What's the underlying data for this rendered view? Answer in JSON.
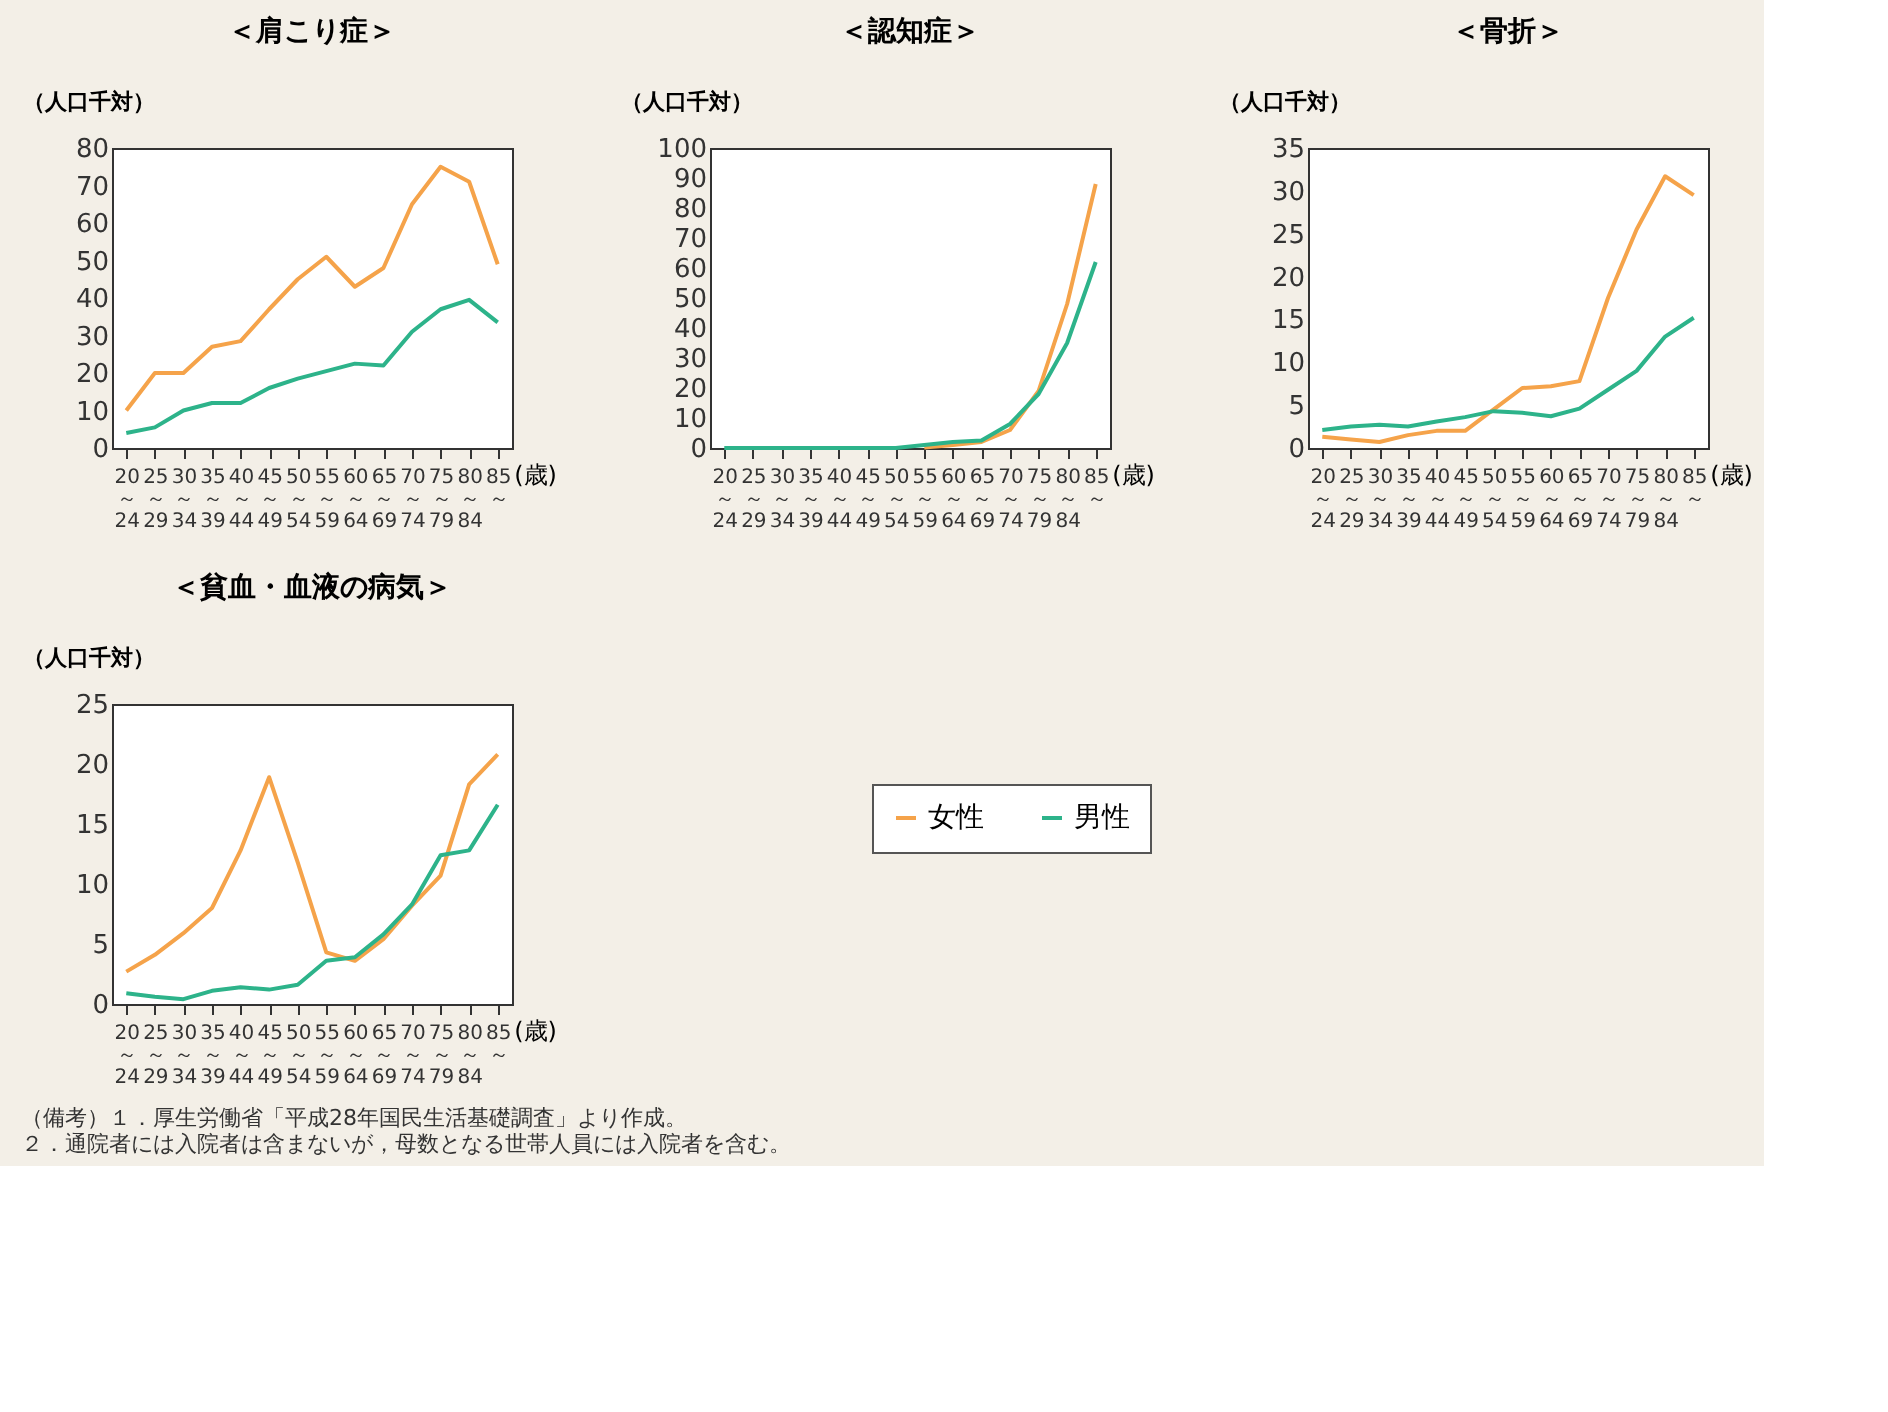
{
  "chart_data": [
    {
      "type": "line",
      "title": "＜肩こり症＞",
      "ylabel": "（人口千対）",
      "xlabel": "(歳)",
      "categories": [
        "20～24",
        "25～29",
        "30～34",
        "35～39",
        "40～44",
        "45～49",
        "50～54",
        "55～59",
        "60～64",
        "65～69",
        "70～74",
        "75～79",
        "80～84",
        "85～"
      ],
      "series": [
        {
          "color": "#f5a34a",
          "values": [
            10,
            20,
            20,
            27,
            28.5,
            37,
            45,
            51,
            43,
            48,
            65,
            75,
            71,
            49
          ]
        },
        {
          "color": "#2db38a",
          "values": [
            4,
            5.5,
            10,
            12,
            12,
            16,
            18.5,
            20.5,
            22.5,
            22,
            31,
            37,
            39.5,
            33.5
          ]
        }
      ],
      "ylim": [
        0,
        80
      ],
      "yticks": [
        0,
        10,
        20,
        30,
        40,
        50,
        60,
        70,
        80
      ],
      "grid": false,
      "marker": "none",
      "line_style": "solid"
    },
    {
      "type": "line",
      "title": "＜認知症＞",
      "ylabel": "（人口千対）",
      "xlabel": "(歳)",
      "categories": [
        "20～24",
        "25～29",
        "30～34",
        "35～39",
        "40～44",
        "45～49",
        "50～54",
        "55～59",
        "60～64",
        "65～69",
        "70～74",
        "75～79",
        "80～84",
        "85～"
      ],
      "series": [
        {
          "color": "#f5a34a",
          "values": [
            null,
            null,
            null,
            null,
            null,
            null,
            null,
            0.2,
            1,
            2,
            6,
            19,
            48,
            88
          ]
        },
        {
          "color": "#2db38a",
          "values": [
            0,
            0,
            0,
            0,
            0,
            0,
            0,
            1,
            2,
            2.5,
            8,
            18,
            35,
            62
          ]
        }
      ],
      "ylim": [
        0,
        100
      ],
      "yticks": [
        0,
        10,
        20,
        30,
        40,
        50,
        60,
        70,
        80,
        90,
        100
      ],
      "grid": false,
      "marker": "none",
      "line_style": "solid"
    },
    {
      "type": "line",
      "title": "＜骨折＞",
      "ylabel": "（人口千対）",
      "xlabel": "(歳)",
      "categories": [
        "20～24",
        "25～29",
        "30～34",
        "35～39",
        "40～44",
        "45～49",
        "50～54",
        "55～59",
        "60～64",
        "65～69",
        "70～74",
        "75～79",
        "80～84",
        "85～"
      ],
      "series": [
        {
          "color": "#f5a34a",
          "values": [
            1.3,
            1,
            0.7,
            1.5,
            2,
            2,
            4.5,
            7,
            7.2,
            7.8,
            17.5,
            25.5,
            31.7,
            29.5
          ]
        },
        {
          "color": "#2db38a",
          "values": [
            2.1,
            2.5,
            2.7,
            2.5,
            3.1,
            3.6,
            4.3,
            4.1,
            3.7,
            4.6,
            6.8,
            9,
            13,
            15.2
          ]
        }
      ],
      "ylim": [
        0,
        35
      ],
      "yticks": [
        0,
        5,
        10,
        15,
        20,
        25,
        30,
        35
      ],
      "grid": false,
      "marker": "none",
      "line_style": "solid"
    },
    {
      "type": "line",
      "title": "＜貧血・血液の病気＞",
      "ylabel": "（人口千対）",
      "xlabel": "(歳)",
      "categories": [
        "20～24",
        "25～29",
        "30～34",
        "35～39",
        "40～44",
        "45～49",
        "50～54",
        "55～59",
        "60～64",
        "65～69",
        "70～74",
        "75～79",
        "80～84",
        "85～"
      ],
      "series": [
        {
          "name": "女性",
          "color": "#f5a34a",
          "values": [
            2.7,
            4.1,
            5.9,
            8,
            12.8,
            18.9,
            11.8,
            4.3,
            3.6,
            5.4,
            8.2,
            10.7,
            18.3,
            20.8
          ]
        },
        {
          "name": "男性",
          "color": "#2db38a",
          "values": [
            0.9,
            0.6,
            0.4,
            1.1,
            1.4,
            1.2,
            1.6,
            3.6,
            3.9,
            5.8,
            8.3,
            12.4,
            12.8,
            16.6
          ]
        }
      ],
      "ylim": [
        0,
        25
      ],
      "yticks": [
        0,
        5,
        10,
        15,
        20,
        25
      ],
      "grid": false,
      "legend": "right",
      "marker": "none",
      "line_style": "solid",
      "annotations": [
        "（備考）１．厚生労働省「平成28年国民生活基礎調査」より作成。",
        "　　　　　２．通院者には入院者は含まないが，母数となる世帯人員には入院者を含む。"
      ]
    }
  ]
}
